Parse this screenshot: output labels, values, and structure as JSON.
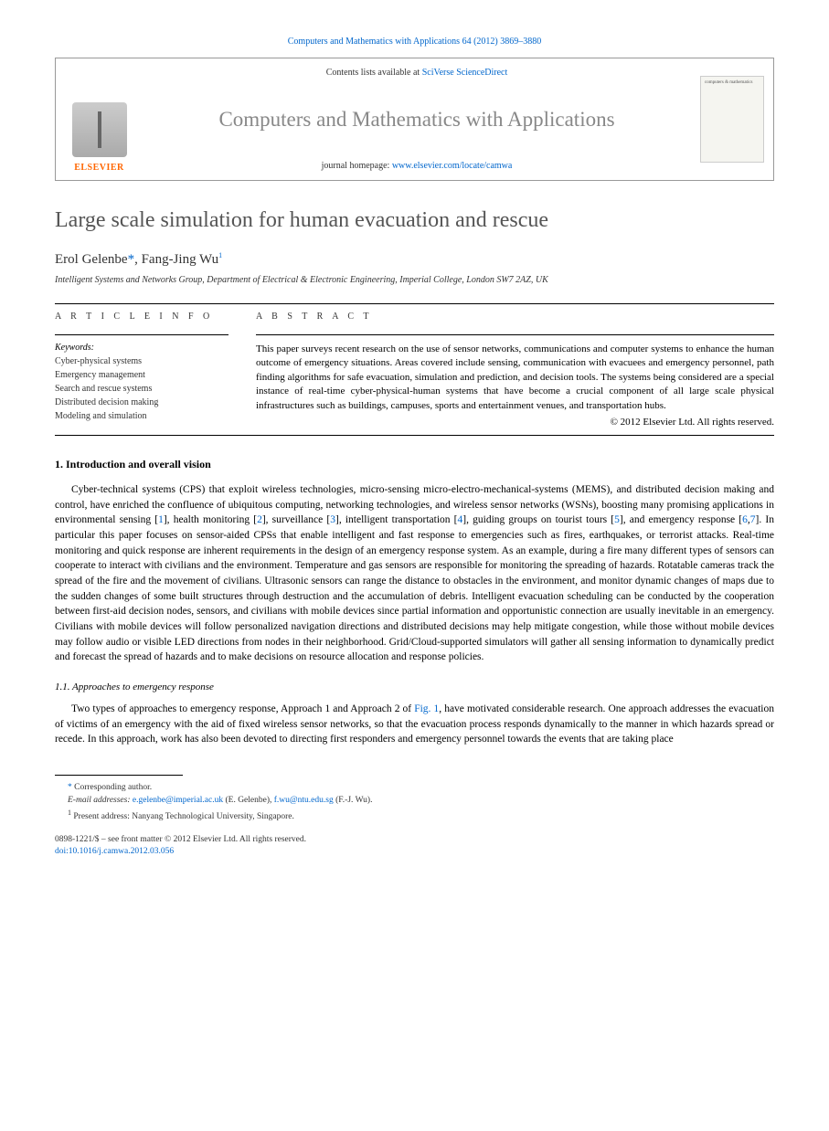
{
  "journal_ref": {
    "prefix": "Computers and Mathematics with Applications 64 (2012) 3869–3880",
    "link": "Computers and Mathematics with Applications 64 (2012) 3869–3880"
  },
  "header": {
    "contents_prefix": "Contents lists available at ",
    "contents_link": "SciVerse ScienceDirect",
    "journal_title": "Computers and Mathematics with Applications",
    "homepage_prefix": "journal homepage: ",
    "homepage_link": "www.elsevier.com/locate/camwa",
    "publisher_logo": "ELSEVIER",
    "cover_text": "computers & mathematics"
  },
  "article": {
    "title": "Large scale simulation for human evacuation and rescue",
    "authors_html": "Erol Gelenbe",
    "author1": "Erol Gelenbe",
    "author1_mark": "*",
    "author_sep": ", ",
    "author2": "Fang-Jing Wu",
    "author2_mark": "1",
    "affiliation": "Intelligent Systems and Networks Group, Department of Electrical & Electronic Engineering, Imperial College, London SW7 2AZ, UK"
  },
  "info": {
    "label": "A R T I C L E   I N F O",
    "keywords_label": "Keywords:",
    "keywords": [
      "Cyber-physical systems",
      "Emergency management",
      "Search and rescue systems",
      "Distributed decision making",
      "Modeling and simulation"
    ]
  },
  "abstract": {
    "label": "A B S T R A C T",
    "text": "This paper surveys recent research on the use of sensor networks, communications and computer systems to enhance the human outcome of emergency situations. Areas covered include sensing, communication with evacuees and emergency personnel, path finding algorithms for safe evacuation, simulation and prediction, and decision tools. The systems being considered are a special instance of real-time cyber-physical-human systems that have become a crucial component of all large scale physical infrastructures such as buildings, campuses, sports and entertainment venues, and transportation hubs.",
    "copyright": "© 2012 Elsevier Ltd. All rights reserved."
  },
  "sections": {
    "s1_heading": "1. Introduction and overall vision",
    "s1_p1_a": "Cyber-technical systems (CPS) that exploit wireless technologies, micro-sensing micro-electro-mechanical-systems (MEMS), and distributed decision making and control, have enriched the confluence of ubiquitous computing, networking technologies, and wireless sensor networks (WSNs), boosting many promising applications in environmental sensing [",
    "ref1": "1",
    "s1_p1_b": "], health monitoring [",
    "ref2": "2",
    "s1_p1_c": "], surveillance [",
    "ref3": "3",
    "s1_p1_d": "], intelligent transportation [",
    "ref4": "4",
    "s1_p1_e": "], guiding groups on tourist tours [",
    "ref5": "5",
    "s1_p1_f": "], and emergency response [",
    "ref6": "6",
    "s1_p1_g": ",",
    "ref7": "7",
    "s1_p1_h": "]. In particular this paper focuses on sensor-aided CPSs that enable intelligent and fast response to emergencies such as fires, earthquakes, or terrorist attacks. Real-time monitoring and quick response are inherent requirements in the design of an emergency response system. As an example, during a fire many different types of sensors can cooperate to interact with civilians and the environment. Temperature and gas sensors are responsible for monitoring the spreading of hazards. Rotatable cameras track the spread of the fire and the movement of civilians. Ultrasonic sensors can range the distance to obstacles in the environment, and monitor dynamic changes of maps due to the sudden changes of some built structures through destruction and the accumulation of debris. Intelligent evacuation scheduling can be conducted by the cooperation between first-aid decision nodes, sensors, and civilians with mobile devices since partial information and opportunistic connection are usually inevitable in an emergency. Civilians with mobile devices will follow personalized navigation directions and distributed decisions may help mitigate congestion, while those without mobile devices may follow audio or visible LED directions from nodes in their neighborhood. Grid/Cloud-supported simulators will gather all sensing information to dynamically predict and forecast the spread of hazards and to make decisions on resource allocation and response policies.",
    "s11_heading": "1.1. Approaches to emergency response",
    "s11_p1_a": "Two types of approaches to emergency response, Approach 1 and Approach 2 of ",
    "fig1": "Fig. 1",
    "s11_p1_b": ", have motivated considerable research. One approach addresses the evacuation of victims of an emergency with the aid of fixed wireless sensor networks, so that the evacuation process responds dynamically to the manner in which hazards spread or recede. In this approach, work has also been devoted to directing first responders and emergency personnel towards the events that are taking place"
  },
  "footnotes": {
    "corr_mark": "*",
    "corr_text": " Corresponding author.",
    "email_label": "E-mail addresses: ",
    "email1": "e.gelenbe@imperial.ac.uk",
    "email1_suffix": " (E. Gelenbe), ",
    "email2": "f.wu@ntu.edu.sg",
    "email2_suffix": " (F.-J. Wu).",
    "note1_mark": "1",
    "note1_text": " Present address: Nanyang Technological University, Singapore."
  },
  "footer": {
    "line1": "0898-1221/$ – see front matter © 2012 Elsevier Ltd. All rights reserved.",
    "doi_prefix": "doi:",
    "doi_link": "10.1016/j.camwa.2012.03.056"
  },
  "colors": {
    "link": "#0066cc",
    "title_gray": "#555555",
    "elsevier_orange": "#ff6600"
  }
}
